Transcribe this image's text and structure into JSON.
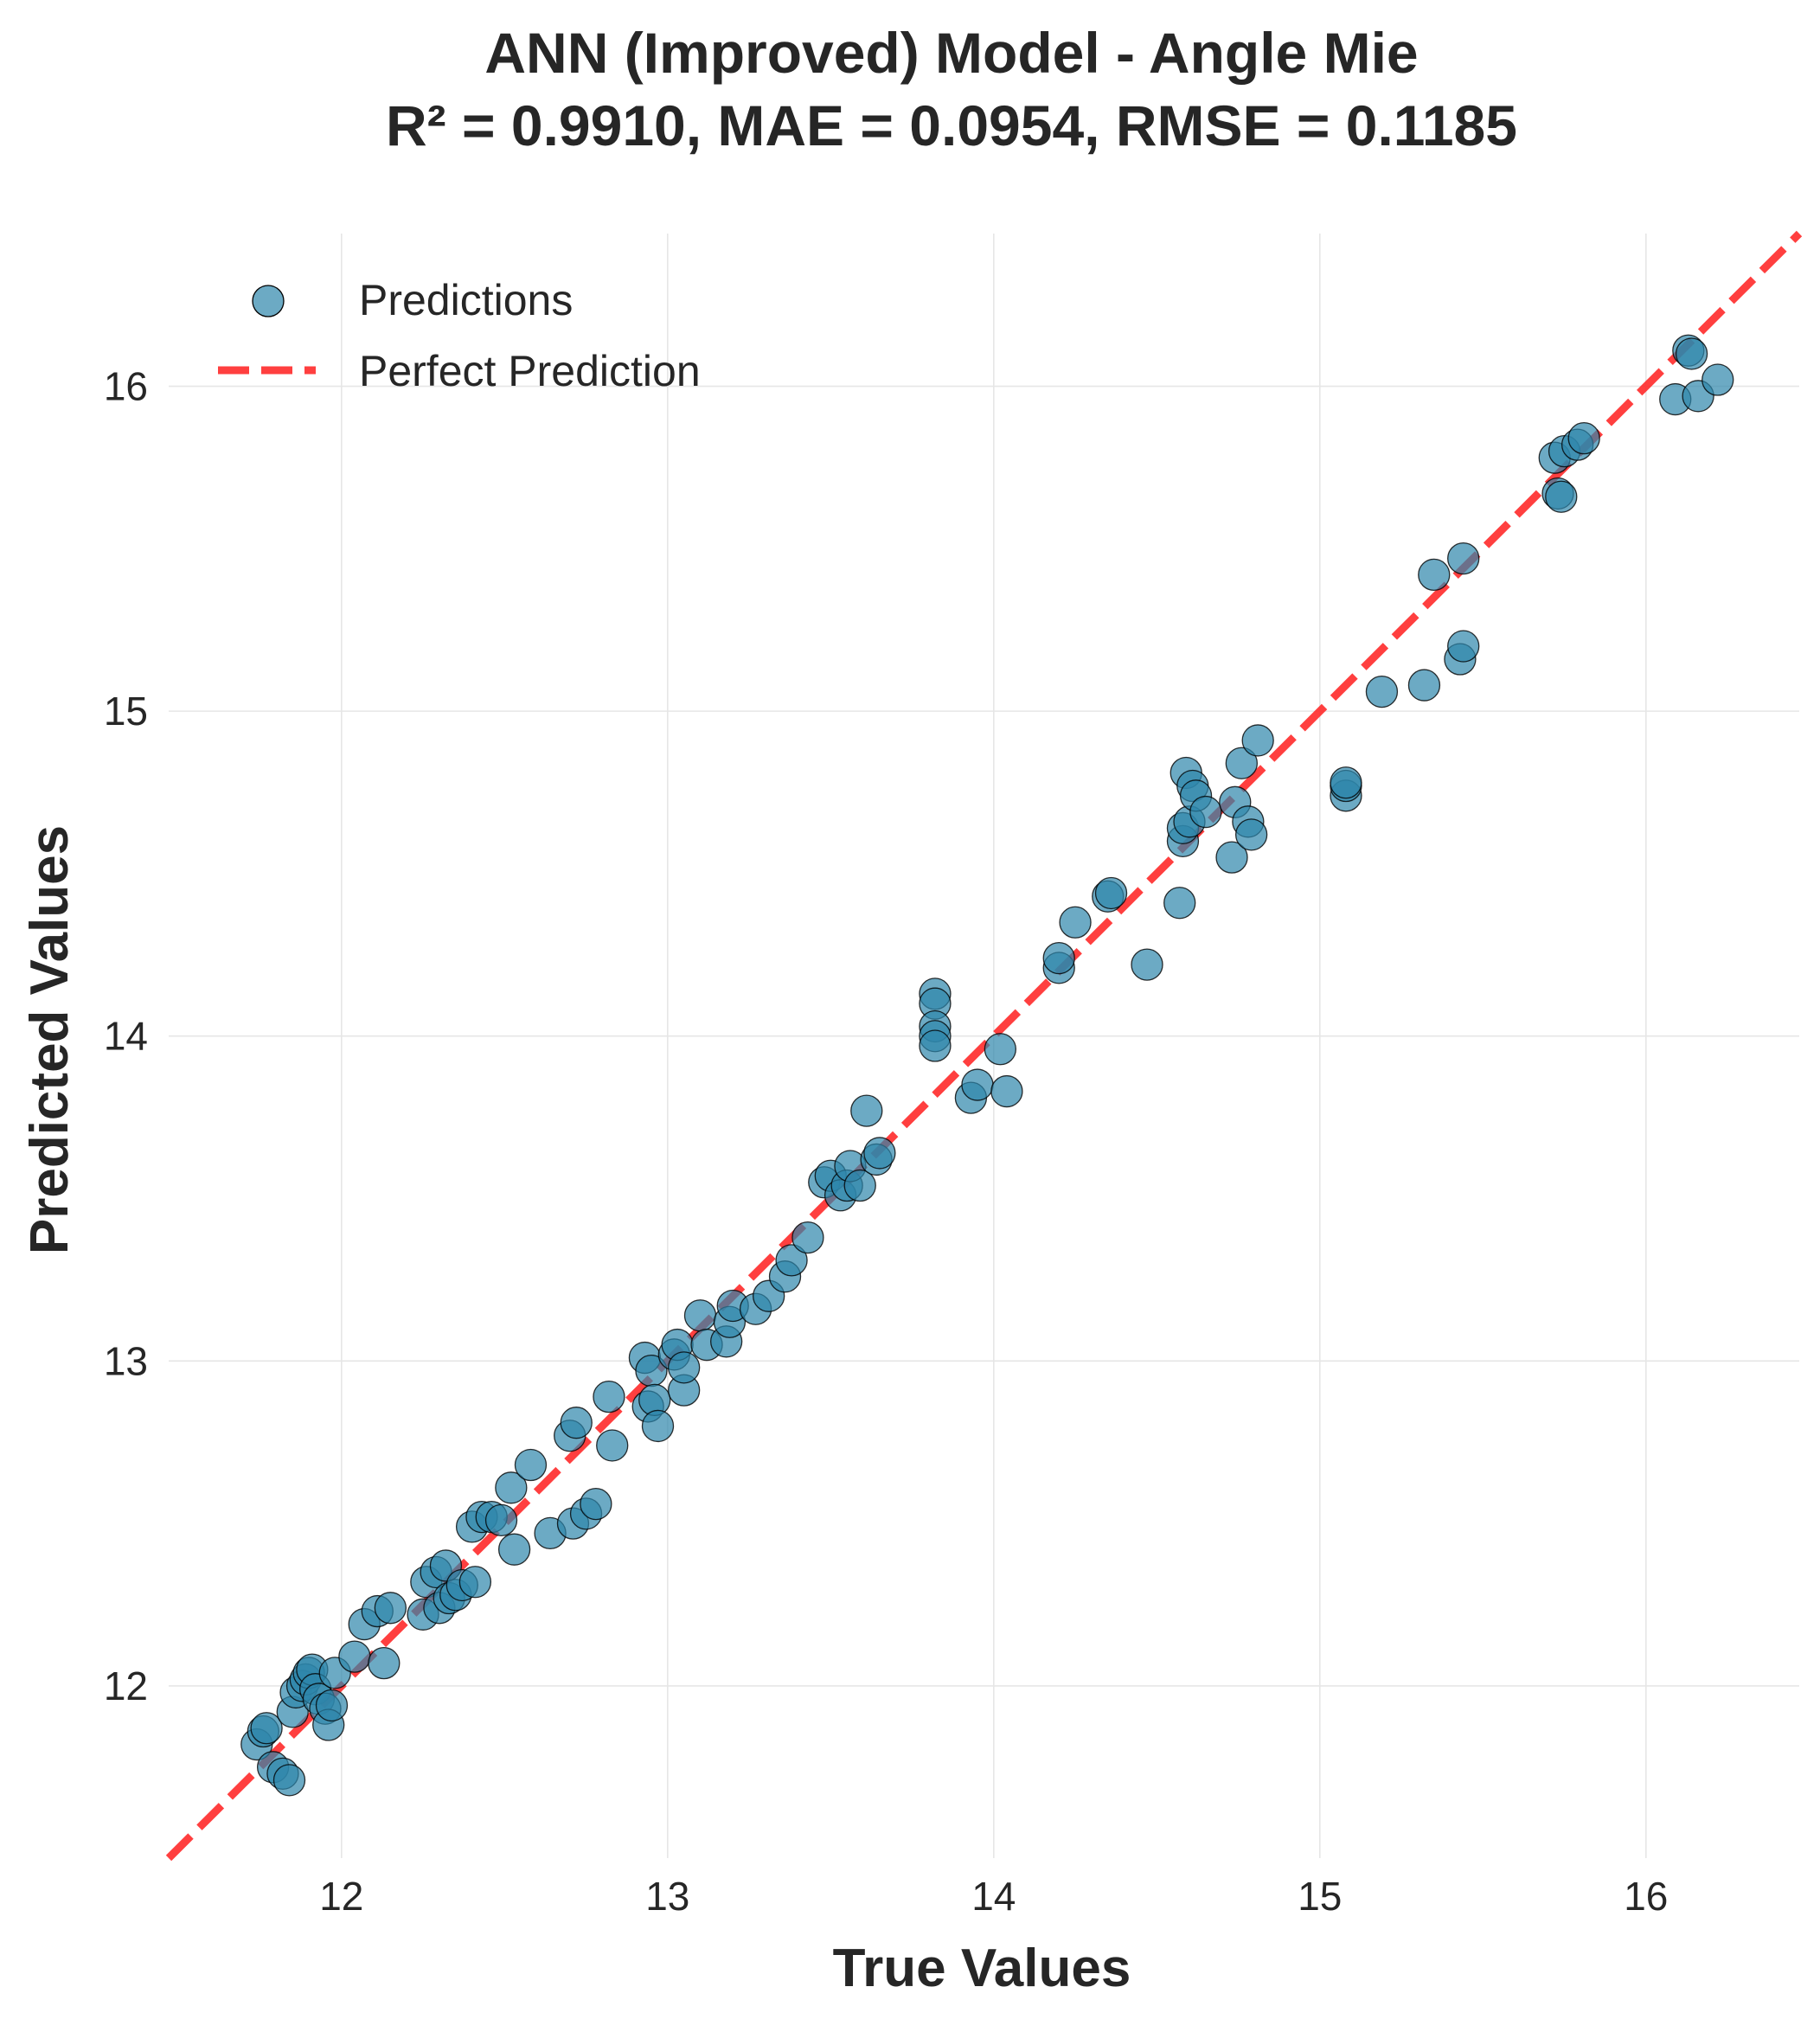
{
  "chart_data": {
    "type": "scatter",
    "title": "ANN (Improved) Model - Angle Mie",
    "subtitle": "R² = 0.9910, MAE = 0.0954, RMSE = 0.1185",
    "xlabel": "True Values",
    "ylabel": "Predicted Values",
    "xlim": [
      11.47,
      16.47
    ],
    "ylim": [
      11.47,
      16.47
    ],
    "xticks": [
      "12",
      "13",
      "14",
      "15",
      "16"
    ],
    "yticks": [
      "12",
      "13",
      "14",
      "15",
      "16"
    ],
    "grid": true,
    "legend_placement": "top-left",
    "colors": {
      "points": "#2e86ab",
      "perfect_line": "#ff2a2a"
    },
    "series": [
      {
        "name": "Predictions",
        "points": [
          [
            11.74,
            11.82
          ],
          [
            11.76,
            11.86
          ],
          [
            11.77,
            11.87
          ],
          [
            11.79,
            11.75
          ],
          [
            11.82,
            11.73
          ],
          [
            11.84,
            11.71
          ],
          [
            11.85,
            11.92
          ],
          [
            11.86,
            11.98
          ],
          [
            11.88,
            12.0
          ],
          [
            11.89,
            12.02
          ],
          [
            11.9,
            12.04
          ],
          [
            11.91,
            12.05
          ],
          [
            11.92,
            11.99
          ],
          [
            11.93,
            11.96
          ],
          [
            11.95,
            11.93
          ],
          [
            11.96,
            11.88
          ],
          [
            11.97,
            11.94
          ],
          [
            11.98,
            12.04
          ],
          [
            12.04,
            12.09
          ],
          [
            12.07,
            12.19
          ],
          [
            12.11,
            12.23
          ],
          [
            12.13,
            12.07
          ],
          [
            12.15,
            12.24
          ],
          [
            12.25,
            12.22
          ],
          [
            12.26,
            12.32
          ],
          [
            12.29,
            12.35
          ],
          [
            12.3,
            12.24
          ],
          [
            12.32,
            12.37
          ],
          [
            12.33,
            12.27
          ],
          [
            12.35,
            12.28
          ],
          [
            12.37,
            12.31
          ],
          [
            12.4,
            12.49
          ],
          [
            12.41,
            12.32
          ],
          [
            12.43,
            12.52
          ],
          [
            12.46,
            12.52
          ],
          [
            12.49,
            12.51
          ],
          [
            12.52,
            12.61
          ],
          [
            12.53,
            12.42
          ],
          [
            12.58,
            12.68
          ],
          [
            12.64,
            12.47
          ],
          [
            12.7,
            12.77
          ],
          [
            12.71,
            12.5
          ],
          [
            12.72,
            12.81
          ],
          [
            12.75,
            12.53
          ],
          [
            12.78,
            12.56
          ],
          [
            12.82,
            12.89
          ],
          [
            12.83,
            12.74
          ],
          [
            12.93,
            13.01
          ],
          [
            12.94,
            12.86
          ],
          [
            12.95,
            12.97
          ],
          [
            12.96,
            12.88
          ],
          [
            12.97,
            12.8
          ],
          [
            13.02,
            13.02
          ],
          [
            13.03,
            13.05
          ],
          [
            13.05,
            12.91
          ],
          [
            13.05,
            12.98
          ],
          [
            13.1,
            13.14
          ],
          [
            13.12,
            13.05
          ],
          [
            13.18,
            13.06
          ],
          [
            13.19,
            13.12
          ],
          [
            13.2,
            13.17
          ],
          [
            13.27,
            13.16
          ],
          [
            13.31,
            13.2
          ],
          [
            13.36,
            13.26
          ],
          [
            13.38,
            13.31
          ],
          [
            13.43,
            13.38
          ],
          [
            13.48,
            13.55
          ],
          [
            13.5,
            13.57
          ],
          [
            13.53,
            13.51
          ],
          [
            13.55,
            13.54
          ],
          [
            13.56,
            13.6
          ],
          [
            13.59,
            13.54
          ],
          [
            13.61,
            13.77
          ],
          [
            13.64,
            13.62
          ],
          [
            13.65,
            13.64
          ],
          [
            13.82,
            14.13
          ],
          [
            13.82,
            14.1
          ],
          [
            13.82,
            14.03
          ],
          [
            13.82,
            14.0
          ],
          [
            13.82,
            13.97
          ],
          [
            13.93,
            13.81
          ],
          [
            13.95,
            13.85
          ],
          [
            14.02,
            13.96
          ],
          [
            14.04,
            13.83
          ],
          [
            14.2,
            14.21
          ],
          [
            14.2,
            14.24
          ],
          [
            14.25,
            14.35
          ],
          [
            14.35,
            14.43
          ],
          [
            14.36,
            14.44
          ],
          [
            14.47,
            14.22
          ],
          [
            14.57,
            14.41
          ],
          [
            14.58,
            14.6
          ],
          [
            14.58,
            14.64
          ],
          [
            14.59,
            14.81
          ],
          [
            14.6,
            14.66
          ],
          [
            14.61,
            14.77
          ],
          [
            14.62,
            14.74
          ],
          [
            14.65,
            14.69
          ],
          [
            14.73,
            14.55
          ],
          [
            14.74,
            14.72
          ],
          [
            14.76,
            14.84
          ],
          [
            14.78,
            14.66
          ],
          [
            14.79,
            14.62
          ],
          [
            14.81,
            14.91
          ],
          [
            15.08,
            14.74
          ],
          [
            15.08,
            14.77
          ],
          [
            15.08,
            14.78
          ],
          [
            15.19,
            15.06
          ],
          [
            15.32,
            15.08
          ],
          [
            15.35,
            15.42
          ],
          [
            15.43,
            15.16
          ],
          [
            15.44,
            15.47
          ],
          [
            15.44,
            15.2
          ],
          [
            15.72,
            15.78
          ],
          [
            15.73,
            15.67
          ],
          [
            15.74,
            15.66
          ],
          [
            15.75,
            15.8
          ],
          [
            15.79,
            15.82
          ],
          [
            15.81,
            15.84
          ],
          [
            16.09,
            15.96
          ],
          [
            16.13,
            16.11
          ],
          [
            16.14,
            16.1
          ],
          [
            16.16,
            15.97
          ],
          [
            16.22,
            16.02
          ]
        ]
      },
      {
        "name": "Perfect Prediction",
        "line": [
          [
            11.47,
            11.47
          ],
          [
            16.47,
            16.47
          ]
        ]
      }
    ]
  }
}
